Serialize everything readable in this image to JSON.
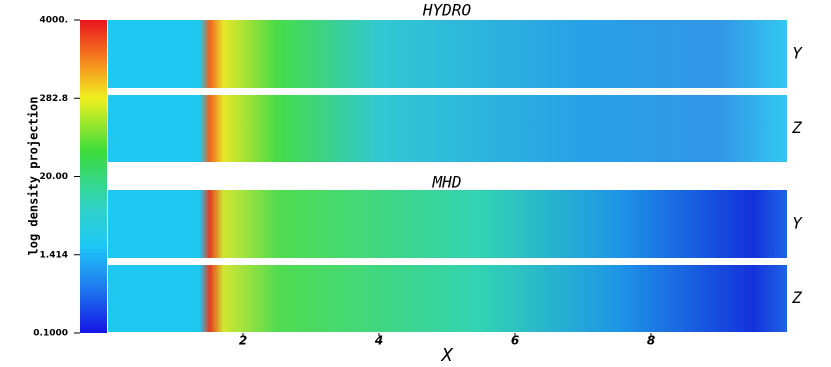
{
  "chart_data": {
    "type": "image",
    "xlabel": "X",
    "xlim": [
      0,
      10
    ],
    "xticks": [
      2,
      4,
      6,
      8
    ],
    "colorbar": {
      "label": "log density projection",
      "log": true,
      "lim": [
        0.1,
        4000
      ],
      "ticks": [
        {
          "value": 4000,
          "label": "4000."
        },
        {
          "value": 282.8,
          "label": "282.8"
        },
        {
          "value": 20,
          "label": "20.00"
        },
        {
          "value": 1.414,
          "label": "1.414"
        },
        {
          "value": 0.1,
          "label": "0.1000"
        }
      ]
    },
    "panels": [
      {
        "title": "HYDRO",
        "rows": [
          "Y",
          "Z"
        ]
      },
      {
        "title": "MHD",
        "rows": [
          "Y",
          "Z"
        ]
      }
    ]
  }
}
